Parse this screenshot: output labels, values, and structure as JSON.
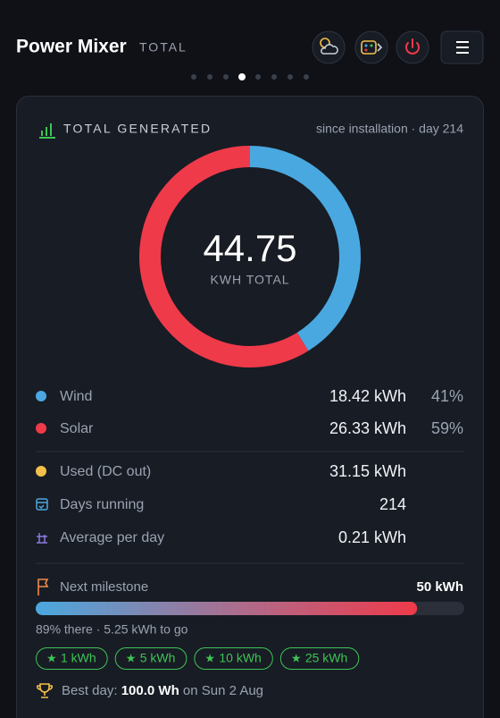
{
  "header": {
    "title": "Power Mixer",
    "subtitle": "TOTAL"
  },
  "card": {
    "title": "TOTAL GENERATED",
    "note": "since installation · day 214"
  },
  "chart_data": {
    "type": "donut",
    "center_value": "44.75",
    "center_label": "KWH TOTAL",
    "categories": [
      "Wind",
      "Solar"
    ],
    "values": [
      18.42,
      26.33
    ],
    "value_labels": [
      "18.42 kWh",
      "26.33 kWh"
    ],
    "share_labels": [
      "41%",
      "59%"
    ],
    "colors": [
      "#4aa8e0",
      "#ef3a4a"
    ]
  },
  "stats": [
    {
      "label": "Used (DC out)",
      "value": "31.15 kWh"
    },
    {
      "label": "Days running",
      "value": "214"
    },
    {
      "label": "Average per day",
      "value": "0.21 kWh"
    }
  ],
  "milestone": {
    "label": "Next milestone",
    "target": "50 kWh",
    "progress": {
      "value": 89,
      "xlim": [
        0,
        100
      ]
    },
    "note": "89% there · 5.25 kWh to go",
    "badges": [
      "1 kWh",
      "5 kWh",
      "10 kWh",
      "25 kWh"
    ]
  },
  "best_day": {
    "label": "Best day:",
    "value": "100.0 Wh",
    "date": "on Sun 2 Aug"
  }
}
